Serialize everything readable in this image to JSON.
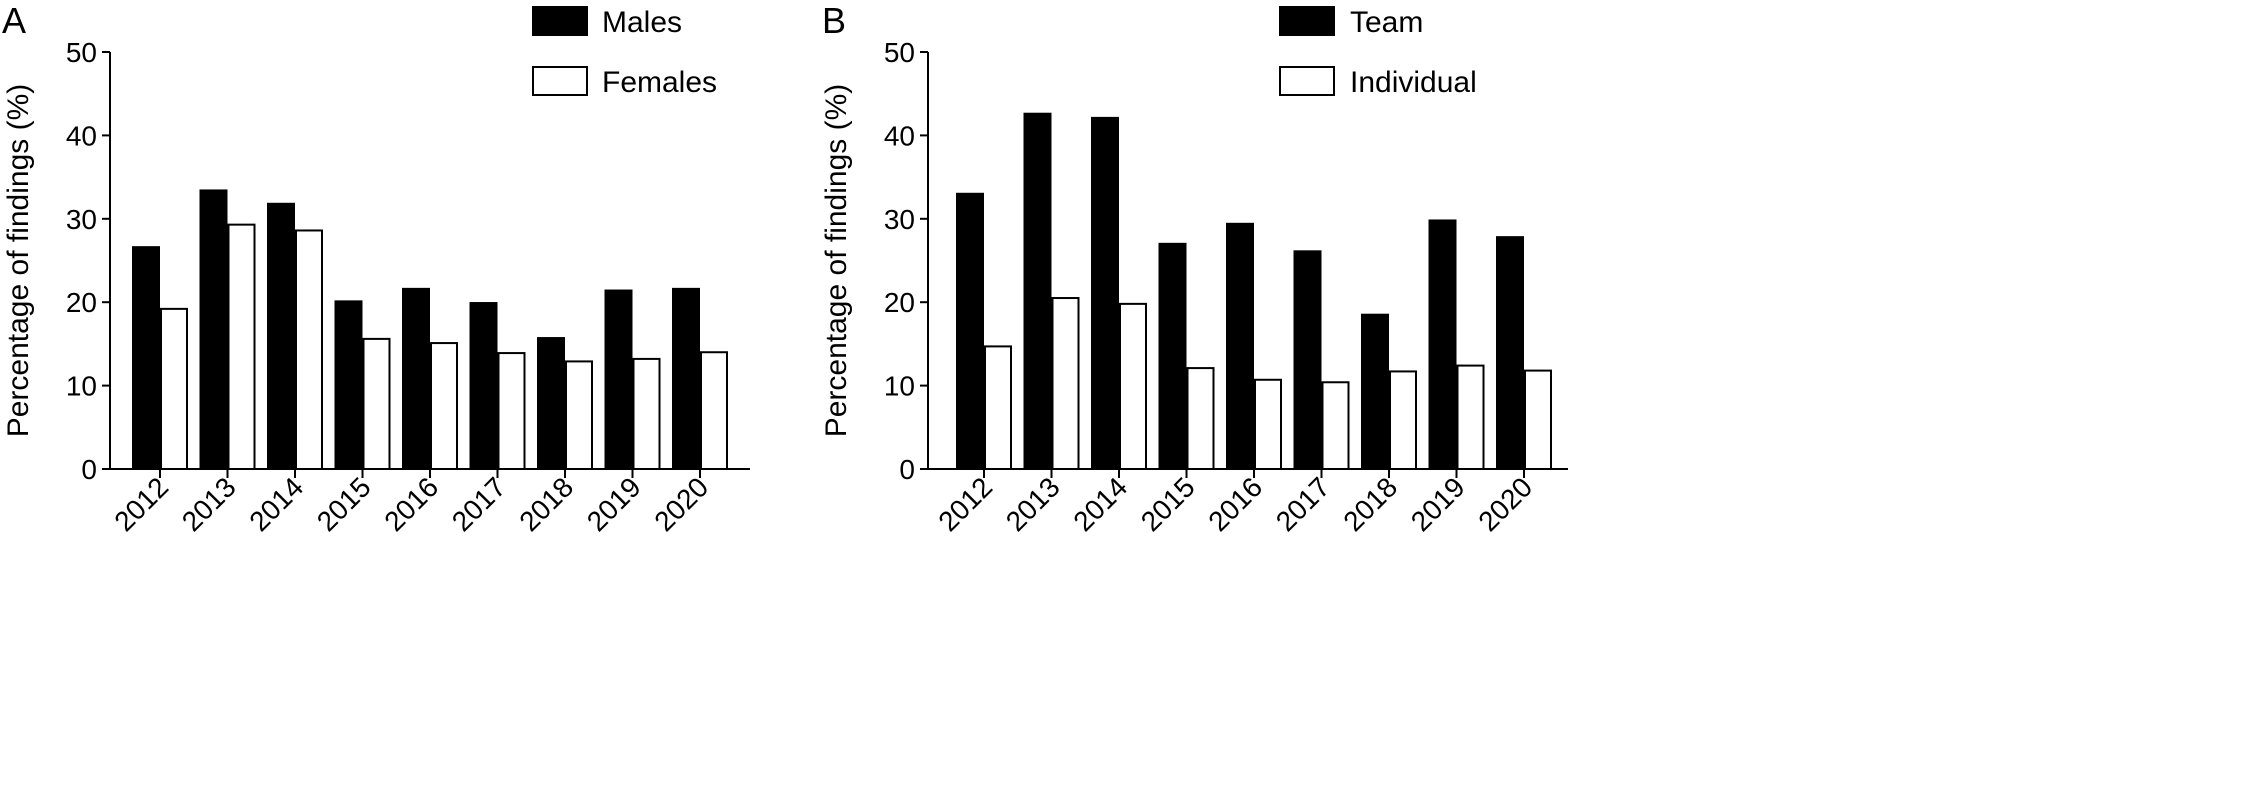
{
  "chart_data": [
    {
      "panel_label": "A",
      "type": "bar",
      "categories": [
        "2012",
        "2013",
        "2014",
        "2015",
        "2016",
        "2017",
        "2018",
        "2019",
        "2020"
      ],
      "series": [
        {
          "name": "Males",
          "color": "#000000",
          "values": [
            26.6,
            33.4,
            31.8,
            20.1,
            21.6,
            19.9,
            15.7,
            21.4,
            21.6
          ]
        },
        {
          "name": "Females",
          "color": "#ffffff",
          "values": [
            19.2,
            29.3,
            28.6,
            15.6,
            15.1,
            13.9,
            12.9,
            13.2,
            14.0
          ]
        }
      ],
      "title": "",
      "xlabel": "",
      "ylabel": "Percentage of findings (%)",
      "ylim": [
        0,
        50
      ],
      "yticks": [
        "0",
        "10",
        "20",
        "30",
        "40",
        "50"
      ],
      "legend_position": "top-right",
      "grid": false
    },
    {
      "panel_label": "B",
      "type": "bar",
      "categories": [
        "2012",
        "2013",
        "2014",
        "2015",
        "2016",
        "2017",
        "2018",
        "2019",
        "2020"
      ],
      "series": [
        {
          "name": "Team",
          "color": "#000000",
          "values": [
            33.0,
            42.6,
            42.1,
            27.0,
            29.4,
            26.1,
            18.5,
            29.8,
            27.8
          ]
        },
        {
          "name": "Individual",
          "color": "#ffffff",
          "values": [
            14.7,
            20.5,
            19.8,
            12.1,
            10.7,
            10.4,
            11.7,
            12.4,
            11.8
          ]
        }
      ],
      "title": "",
      "xlabel": "",
      "ylabel": "Percentage of findings (%)",
      "ylim": [
        0,
        50
      ],
      "yticks": [
        "0",
        "10",
        "20",
        "30",
        "40",
        "50"
      ],
      "legend_position": "top-right",
      "grid": false
    }
  ]
}
